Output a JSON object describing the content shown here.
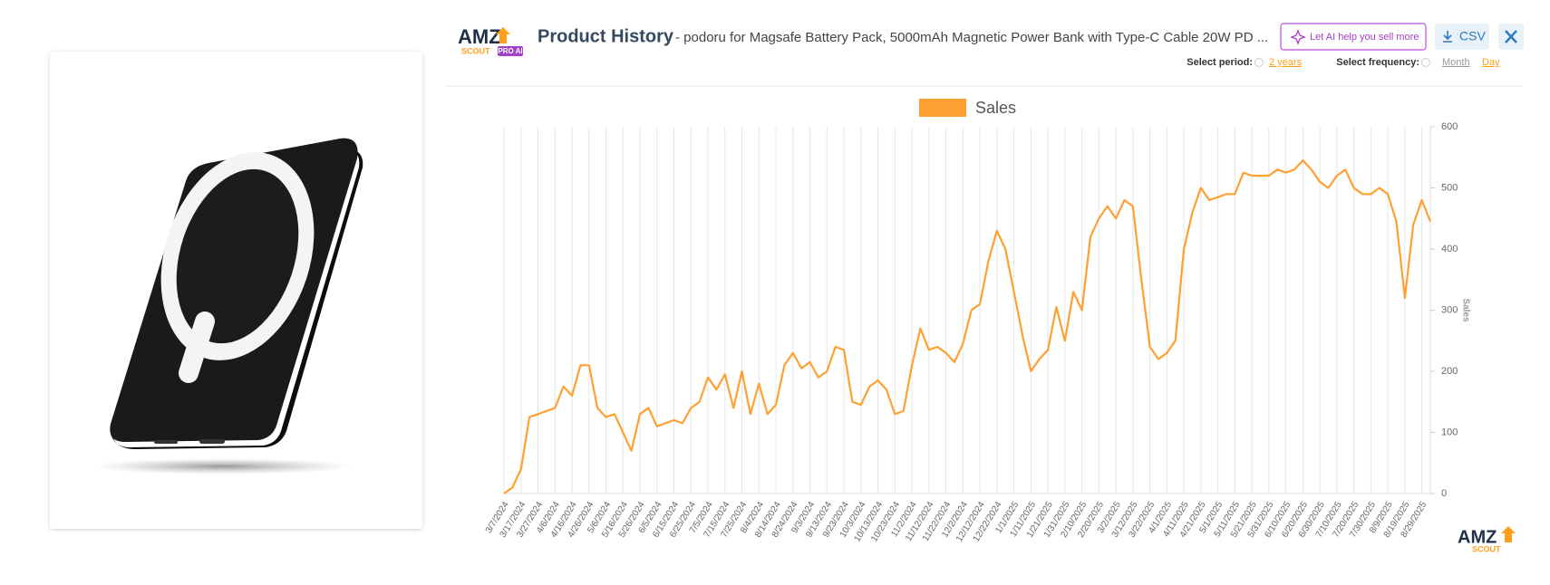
{
  "header": {
    "logo": {
      "main": "AMZ",
      "sub": "SCOUT",
      "badge": "PRO AI"
    },
    "title": "Product History",
    "subtitle": "- podoru for Magsafe Battery Pack, 5000mAh Magnetic Power Bank with Type-C Cable 20W PD ...",
    "buttons": {
      "ai": "Let AI help you sell more",
      "csv": "CSV"
    }
  },
  "controls": {
    "period_label": "Select period:",
    "period": "2 years",
    "frequency_label": "Select frequency:",
    "frequencies": [
      "Month",
      "Day"
    ]
  },
  "footer_logo": {
    "main": "AMZ",
    "sub": "SCOUT"
  },
  "chart_data": {
    "type": "line",
    "y_label": "Sales",
    "y_axis_side": "right",
    "grid": "vertical",
    "legend": "top",
    "categories": [
      "3/7/2024",
      null,
      "3/17/2024",
      null,
      "3/27/2024",
      null,
      "4/6/2024",
      null,
      "4/16/2024",
      null,
      "4/26/2024",
      null,
      "5/6/2024",
      null,
      "5/16/2024",
      null,
      "5/26/2024",
      null,
      "6/5/2024",
      null,
      "6/15/2024",
      null,
      "6/25/2024",
      null,
      "7/5/2024",
      null,
      "7/15/2024",
      null,
      "7/25/2024",
      null,
      "8/4/2024",
      null,
      "8/14/2024",
      null,
      "8/24/2024",
      null,
      "9/3/2024",
      null,
      "9/13/2024",
      null,
      "9/23/2024",
      null,
      "10/3/2024",
      null,
      "10/13/2024",
      null,
      "10/23/2024",
      null,
      "11/2/2024",
      null,
      "11/12/2024",
      null,
      "11/22/2024",
      null,
      "12/2/2024",
      null,
      "12/12/2024",
      null,
      "12/22/2024",
      null,
      "1/1/2025",
      null,
      "1/11/2025",
      null,
      "1/21/2025",
      null,
      "1/31/2025",
      null,
      "2/10/2025",
      null,
      "2/20/2025",
      null,
      "3/2/2025",
      null,
      "3/12/2025",
      null,
      "3/22/2025",
      null,
      "4/1/2025",
      null,
      "4/11/2025",
      null,
      "4/21/2025",
      null,
      "5/1/2025",
      null,
      "5/11/2025",
      null,
      "5/21/2025",
      null,
      "5/31/2025",
      null,
      "6/10/2025",
      null,
      "6/20/2025",
      null,
      "6/30/2025",
      null,
      "7/10/2025",
      null,
      "7/20/2025",
      null,
      "7/30/2025",
      null,
      "8/9/2025",
      null,
      "8/19/2025",
      null,
      "8/29/2025",
      null
    ],
    "series": [
      {
        "name": "Sales",
        "color": "#ffa033",
        "values": [
          0,
          10,
          40,
          125,
          130,
          135,
          140,
          175,
          160,
          210,
          210,
          140,
          125,
          130,
          100,
          70,
          130,
          140,
          110,
          115,
          120,
          115,
          140,
          150,
          190,
          170,
          195,
          140,
          200,
          130,
          180,
          130,
          145,
          210,
          230,
          205,
          215,
          190,
          200,
          240,
          235,
          150,
          145,
          175,
          185,
          170,
          130,
          135,
          210,
          270,
          235,
          240,
          230,
          215,
          245,
          300,
          310,
          380,
          430,
          400,
          330,
          260,
          200,
          220,
          235,
          305,
          250,
          330,
          300,
          420,
          450,
          470,
          450,
          480,
          470,
          350,
          240,
          220,
          230,
          250,
          400,
          460,
          500,
          480,
          485,
          490,
          490,
          525,
          520,
          520,
          520,
          530,
          525,
          530,
          545,
          530,
          510,
          500,
          520,
          530,
          500,
          490,
          490,
          500,
          490,
          445,
          320,
          440,
          480,
          445
        ]
      }
    ],
    "ylim": [
      0,
      600
    ],
    "yticks": [
      0,
      100,
      200,
      300,
      400,
      500,
      600
    ]
  }
}
